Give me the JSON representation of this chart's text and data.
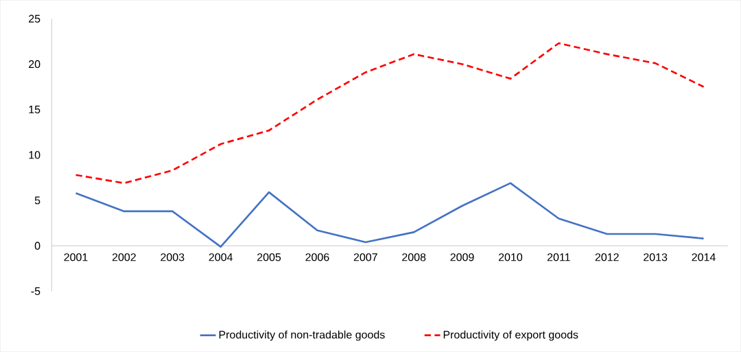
{
  "chart_data": {
    "type": "line",
    "categories": [
      "2001",
      "2002",
      "2003",
      "2004",
      "2005",
      "2006",
      "2007",
      "2008",
      "2009",
      "2010",
      "2011",
      "2012",
      "2013",
      "2014"
    ],
    "series": [
      {
        "name": "Productivity of non-tradable goods",
        "color": "#4472c4",
        "line_style": "solid",
        "values": [
          5.8,
          3.8,
          3.8,
          -0.1,
          5.9,
          1.7,
          0.4,
          1.5,
          4.4,
          6.9,
          3.0,
          1.3,
          1.3,
          0.8
        ]
      },
      {
        "name": "Productivity of export goods",
        "color": "#ff0000",
        "line_style": "dashed",
        "values": [
          7.8,
          6.9,
          8.3,
          11.2,
          12.7,
          16.1,
          19.1,
          21.1,
          20.0,
          18.4,
          22.3,
          21.1,
          20.1,
          17.5
        ]
      }
    ],
    "ylim": [
      -5,
      25
    ],
    "yticks": [
      -5,
      0,
      5,
      10,
      15,
      20,
      25
    ],
    "grid": false,
    "legend": "bottom",
    "marker": "none"
  }
}
